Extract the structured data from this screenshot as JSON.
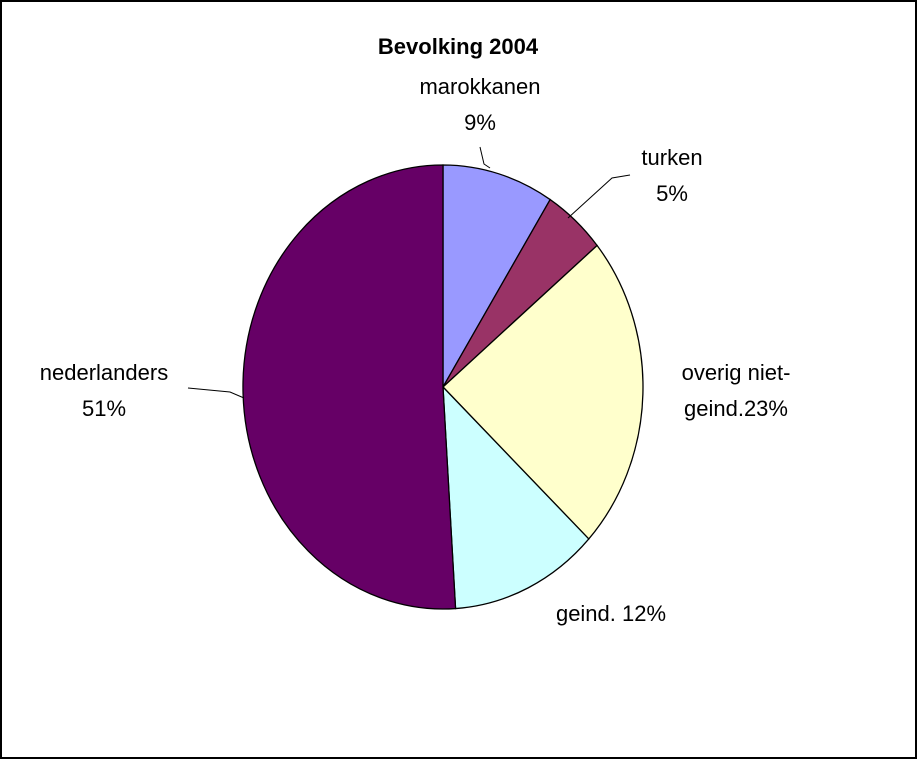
{
  "chart_data": {
    "type": "pie",
    "title": "Bevolking 2004",
    "slices": [
      {
        "name": "marokkanen",
        "value": 9,
        "label_lines": [
          "marokkanen",
          "9%"
        ],
        "color": "#9999ff"
      },
      {
        "name": "turken",
        "value": 5,
        "label_lines": [
          "turken",
          "5%"
        ],
        "color": "#993366"
      },
      {
        "name": "overig niet-geind.",
        "value": 23,
        "label_lines": [
          "overig niet-",
          "geind.23%"
        ],
        "color": "#ffffcc"
      },
      {
        "name": "geind.",
        "value": 12,
        "label_lines": [
          "geind. 12%"
        ],
        "color": "#ccffff"
      },
      {
        "name": "nederlanders",
        "value": 51,
        "label_lines": [
          "nederlanders",
          "51%"
        ],
        "color": "#660066"
      }
    ],
    "legend": "none"
  }
}
